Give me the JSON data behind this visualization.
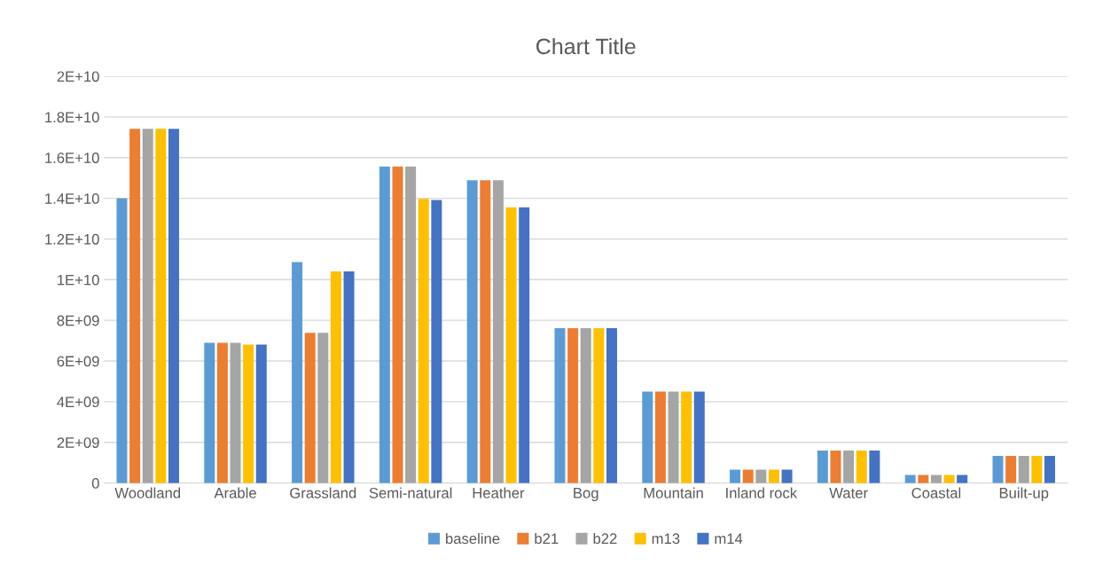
{
  "chart_data": {
    "type": "bar",
    "title": "Chart Title",
    "categories": [
      "Woodland",
      "Arable",
      "Grassland",
      "Semi-natural",
      "Heather",
      "Bog",
      "Mountain",
      "Inland rock",
      "Water",
      "Coastal",
      "Built-up"
    ],
    "series": [
      {
        "name": "baseline",
        "color": "#5b9bd5",
        "values": [
          14000000000.0,
          6900000000.0,
          10860000000.0,
          15560000000.0,
          14890000000.0,
          7620000000.0,
          4500000000.0,
          660000000.0,
          1600000000.0,
          400000000.0,
          1340000000.0
        ]
      },
      {
        "name": "b21",
        "color": "#ed7d31",
        "values": [
          17420000000.0,
          6900000000.0,
          7390000000.0,
          15560000000.0,
          14890000000.0,
          7620000000.0,
          4500000000.0,
          660000000.0,
          1600000000.0,
          400000000.0,
          1340000000.0
        ]
      },
      {
        "name": "b22",
        "color": "#a5a5a5",
        "values": [
          17420000000.0,
          6900000000.0,
          7390000000.0,
          15560000000.0,
          14890000000.0,
          7620000000.0,
          4500000000.0,
          660000000.0,
          1600000000.0,
          400000000.0,
          1340000000.0
        ]
      },
      {
        "name": "m13",
        "color": "#ffc000",
        "values": [
          17420000000.0,
          6810000000.0,
          10410000000.0,
          13970000000.0,
          13560000000.0,
          7620000000.0,
          4500000000.0,
          660000000.0,
          1600000000.0,
          400000000.0,
          1340000000.0
        ]
      },
      {
        "name": "m14",
        "color": "#4472c4",
        "values": [
          17420000000.0,
          6810000000.0,
          10410000000.0,
          13920000000.0,
          13560000000.0,
          7620000000.0,
          4500000000.0,
          660000000.0,
          1600000000.0,
          400000000.0,
          1340000000.0
        ]
      }
    ],
    "ylim": [
      0,
      20000000000.0
    ],
    "yticks": [
      0,
      {
        "value": 2000000000.0,
        "label": "2E+09"
      },
      {
        "value": 4000000000.0,
        "label": "4E+09"
      },
      {
        "value": 6000000000.0,
        "label": "6E+09"
      },
      {
        "value": 8000000000.0,
        "label": "8E+09"
      },
      {
        "value": 10000000000.0,
        "label": "1E+10"
      },
      {
        "value": 12000000000.0,
        "label": "1.2E+10"
      },
      {
        "value": 14000000000.0,
        "label": "1.4E+10"
      },
      {
        "value": 16000000000.0,
        "label": "1.6E+10"
      },
      {
        "value": 18000000000.0,
        "label": "1.8E+10"
      },
      {
        "value": 20000000000.0,
        "label": "2E+10"
      }
    ],
    "grid": "y",
    "legend": "bottom"
  }
}
